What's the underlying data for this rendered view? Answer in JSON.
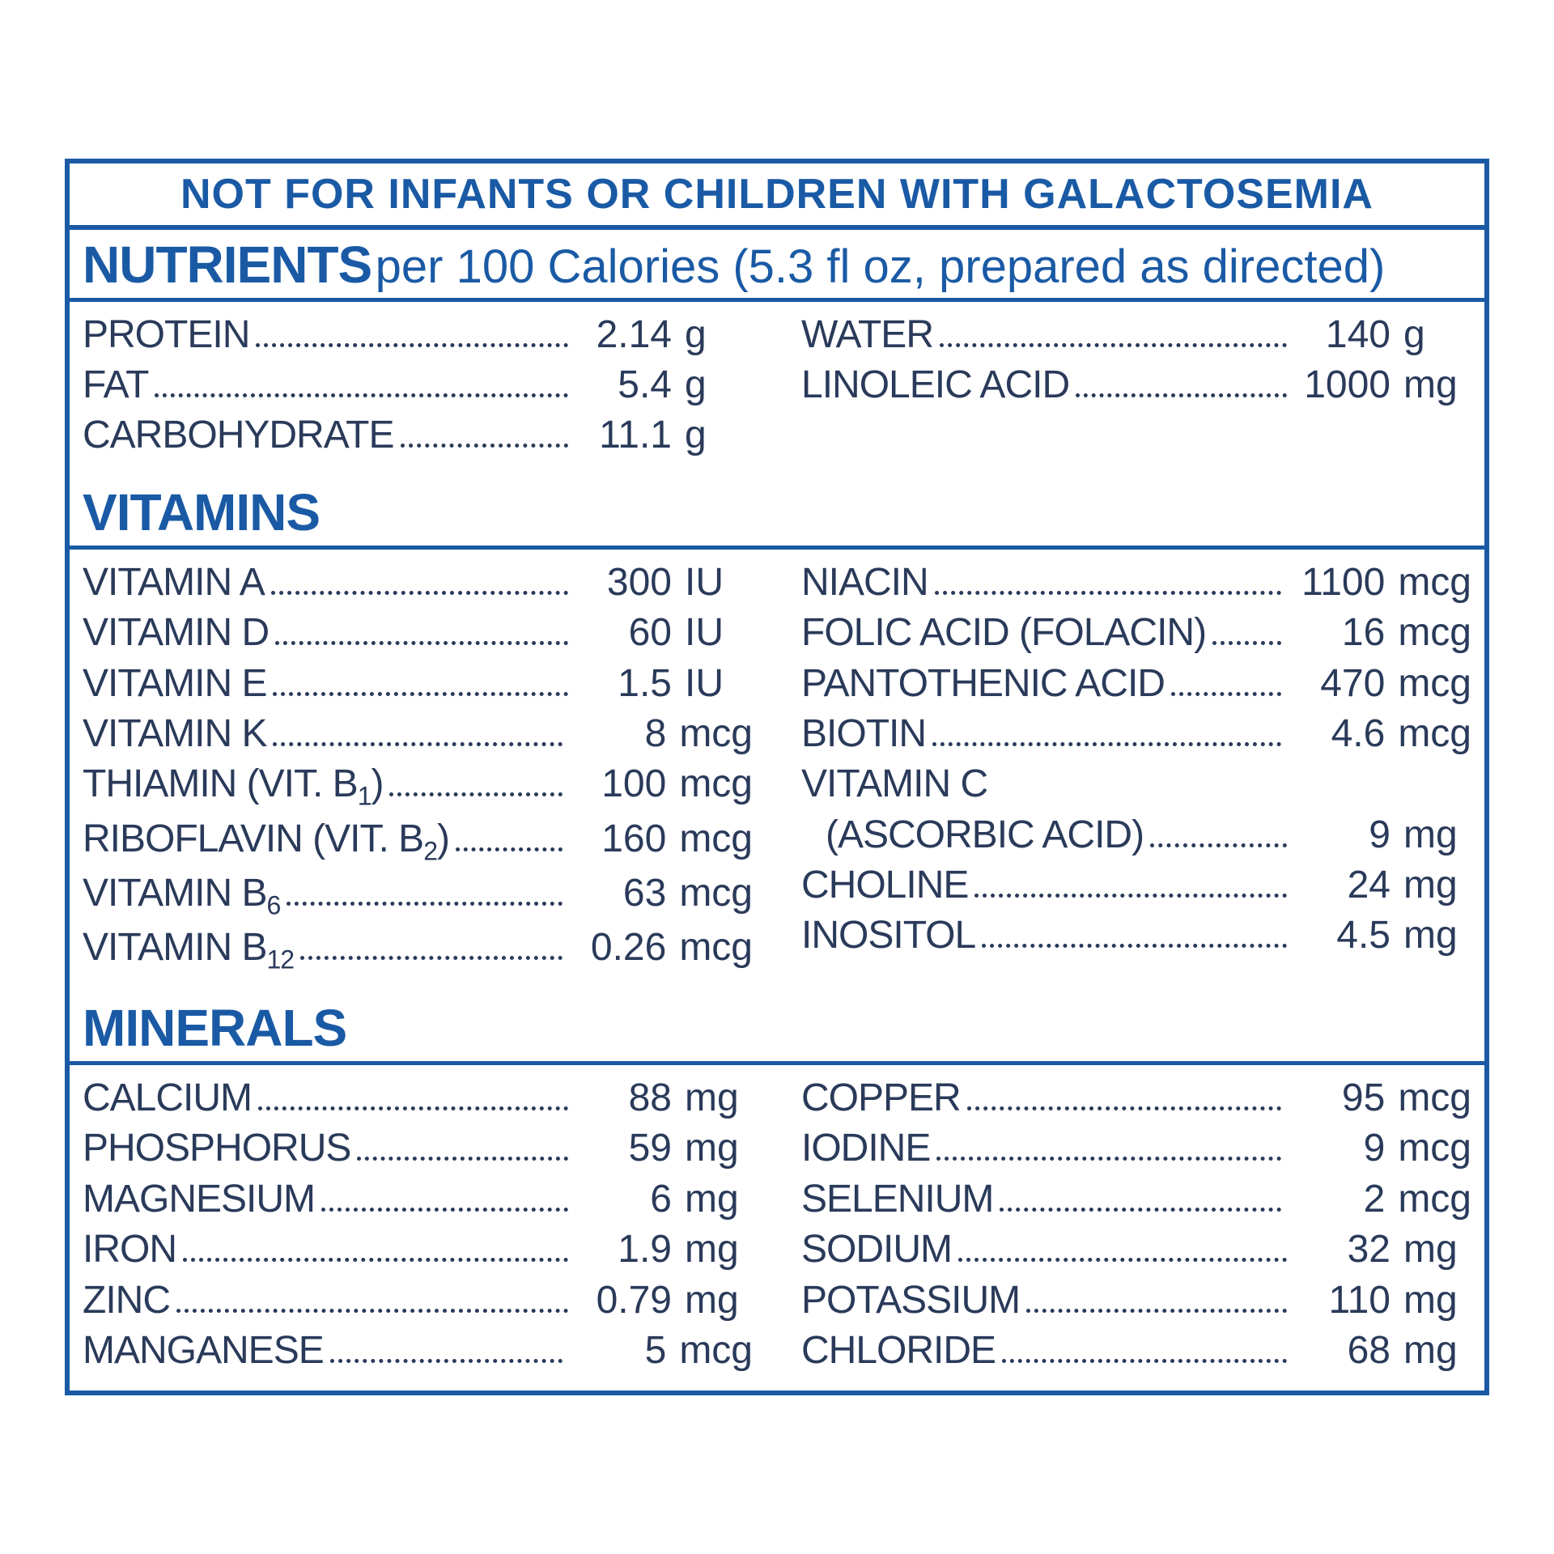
{
  "colors": {
    "accent": "#1a5aa5",
    "text": "#2a3a5a",
    "background": "#ffffff"
  },
  "typography": {
    "warning_fontsize": 52,
    "title_fontsize": 64,
    "subtitle_fontsize": 58,
    "row_fontsize": 48,
    "subscript_fontsize": 32
  },
  "warning": "NOT FOR INFANTS OR CHILDREN WITH GALACTOSEMIA",
  "header": {
    "title": "NUTRIENTS",
    "subtitle": "per 100 Calories (5.3 fl oz, prepared as directed)"
  },
  "sections": {
    "nutrients": {
      "left": [
        {
          "name": "PROTEIN",
          "value": "2.14",
          "unit": "g"
        },
        {
          "name": "FAT",
          "value": "5.4",
          "unit": "g"
        },
        {
          "name": "CARBOHYDRATE",
          "value": "11.1",
          "unit": "g"
        }
      ],
      "right": [
        {
          "name": "WATER",
          "value": "140",
          "unit": "g"
        },
        {
          "name": "LINOLEIC ACID",
          "value": "1000",
          "unit": "mg"
        }
      ]
    },
    "vitamins": {
      "title": "VITAMINS",
      "left": [
        {
          "name": "VITAMIN A",
          "value": "300",
          "unit": "IU"
        },
        {
          "name": "VITAMIN D",
          "value": "60",
          "unit": "IU"
        },
        {
          "name": "VITAMIN E",
          "value": "1.5",
          "unit": "IU"
        },
        {
          "name": "VITAMIN K",
          "value": "8",
          "unit": "mcg"
        },
        {
          "name": "THIAMIN (VIT. B",
          "sub": "1",
          "suffix": ")",
          "value": "100",
          "unit": "mcg"
        },
        {
          "name": "RIBOFLAVIN (VIT. B",
          "sub": "2",
          "suffix": ")",
          "value": "160",
          "unit": "mcg"
        },
        {
          "name": "VITAMIN B",
          "sub": "6",
          "value": "63",
          "unit": "mcg"
        },
        {
          "name": "VITAMIN B",
          "sub": "12",
          "value": "0.26",
          "unit": "mcg"
        }
      ],
      "right": [
        {
          "name": "NIACIN",
          "value": "1100",
          "unit": "mcg"
        },
        {
          "name": "FOLIC ACID (FOLACIN)",
          "value": "16",
          "unit": "mcg"
        },
        {
          "name": "PANTOTHENIC ACID",
          "value": "470",
          "unit": "mcg"
        },
        {
          "name": "BIOTIN",
          "value": "4.6",
          "unit": "mcg"
        },
        {
          "name": "VITAMIN C",
          "noval": true
        },
        {
          "name": "(ASCORBIC ACID)",
          "indent": true,
          "value": "9",
          "unit": "mg"
        },
        {
          "name": "CHOLINE",
          "value": "24",
          "unit": "mg"
        },
        {
          "name": "INOSITOL",
          "value": "4.5",
          "unit": "mg"
        }
      ]
    },
    "minerals": {
      "title": "MINERALS",
      "left": [
        {
          "name": "CALCIUM",
          "value": "88",
          "unit": "mg"
        },
        {
          "name": "PHOSPHORUS",
          "value": "59",
          "unit": "mg"
        },
        {
          "name": "MAGNESIUM",
          "value": "6",
          "unit": "mg"
        },
        {
          "name": "IRON",
          "value": "1.9",
          "unit": "mg"
        },
        {
          "name": "ZINC",
          "value": "0.79",
          "unit": "mg"
        },
        {
          "name": "MANGANESE",
          "value": "5",
          "unit": "mcg"
        }
      ],
      "right": [
        {
          "name": "COPPER",
          "value": "95",
          "unit": "mcg"
        },
        {
          "name": "IODINE",
          "value": "9",
          "unit": "mcg"
        },
        {
          "name": "SELENIUM",
          "value": "2",
          "unit": "mcg"
        },
        {
          "name": "SODIUM",
          "value": "32",
          "unit": "mg"
        },
        {
          "name": "POTASSIUM",
          "value": "110",
          "unit": "mg"
        },
        {
          "name": "CHLORIDE",
          "value": "68",
          "unit": "mg"
        }
      ]
    }
  }
}
